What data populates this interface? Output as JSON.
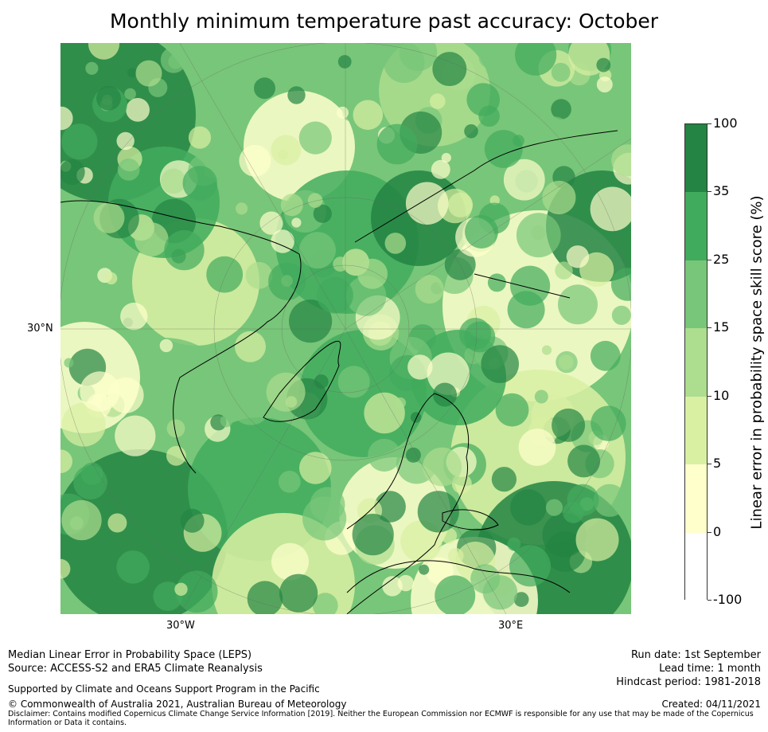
{
  "title": "Monthly minimum temperature past accuracy: October",
  "map": {
    "grid_labels": {
      "lat_30": "30°N",
      "lon_w30": "30°W",
      "lon_e30": "30°E"
    },
    "palette": [
      "#ffffff",
      "#ffffcc",
      "#d9f0a3",
      "#addd8e",
      "#78c679",
      "#41ab5d",
      "#238443"
    ]
  },
  "colorbar": {
    "label": "Linear error in probability space skill score (%)",
    "ticks": [
      "100",
      "35",
      "25",
      "15",
      "10",
      "5",
      "0",
      "-100"
    ],
    "colors": [
      "#238443",
      "#41ab5d",
      "#78c679",
      "#addd8e",
      "#d9f0a3",
      "#ffffcc",
      "#ffffff"
    ]
  },
  "footer": {
    "line1": "Median Linear Error in Probability Space (LEPS)",
    "line2": "Source: ACCESS-S2 and ERA5 Climate Reanalysis",
    "support": "Supported by Climate and Oceans Support Program in the Pacific",
    "copyright": "© Commonwealth of Australia 2021, Australian Bureau of Meteorology",
    "disclaimer1": "Disclaimer: Contains modified Copernicus Climate Change Service Information [2019]. Neither the European Commission nor ECMWF is responsible for any use that may be made of the Copernicus",
    "disclaimer2": "Information or Data it contains.",
    "run_date": "Run date: 1st September",
    "lead_time": "Lead time: 1 month",
    "hindcast": "Hindcast period: 1981-2018",
    "created": "Created: 04/11/2021"
  }
}
